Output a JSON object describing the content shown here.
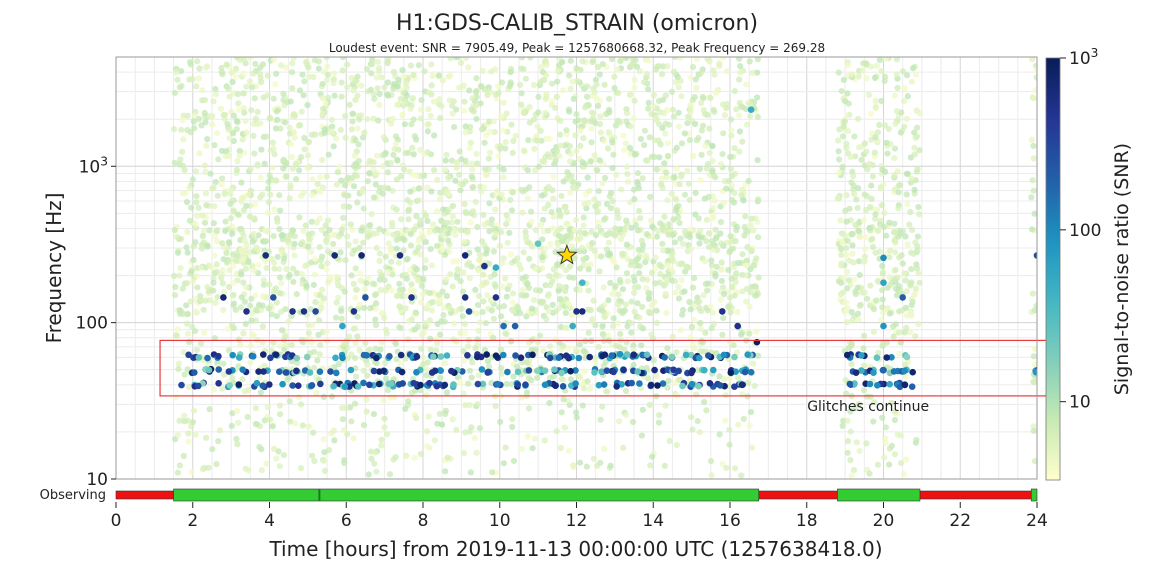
{
  "chart_data": {
    "type": "scatter",
    "title": "H1:GDS-CALIB_STRAIN (omicron)",
    "subtitle": "Loudest event: SNR = 7905.49, Peak = 1257680668.32, Peak Frequency = 269.28",
    "xlabel": "Time [hours] from 2019-11-13 00:00:00 UTC (1257638418.0)",
    "ylabel": "Frequency [Hz]",
    "xlim": [
      0,
      24
    ],
    "ylim": [
      10,
      5000
    ],
    "yscale": "log",
    "x_ticks": [
      "0",
      "2",
      "4",
      "6",
      "8",
      "10",
      "12",
      "14",
      "16",
      "18",
      "20",
      "22",
      "24"
    ],
    "y_ticks": [
      {
        "value": 10,
        "label": "10"
      },
      {
        "value": 100,
        "label": "100"
      },
      {
        "value": 1000,
        "label": "10",
        "sup": "3"
      }
    ],
    "grid": true,
    "colorbar": {
      "label": "Signal-to-noise ratio (SNR)",
      "scale": "log",
      "range": [
        3.5,
        1000
      ],
      "colormap": [
        "#ffffcc",
        "#c7e9b4",
        "#7fcdbb",
        "#41b6c4",
        "#1d91c0",
        "#225ea8",
        "#253494",
        "#081d58"
      ],
      "ticks": [
        {
          "value": 10,
          "label": "10"
        },
        {
          "value": 100,
          "label": "100"
        },
        {
          "value": 1000,
          "label": "10",
          "sup": "3"
        }
      ]
    },
    "annotation": {
      "text": "Glitches continue",
      "box_x": [
        1.2,
        24
      ],
      "box_freq": [
        34,
        77
      ],
      "box_color": "#e8383d"
    },
    "loudest_event": {
      "time_hours": 11.75,
      "frequency": 269.28,
      "snr": 7905.49,
      "marker": "star",
      "color": "#ffd700"
    },
    "background_segments": [
      {
        "start": 1.5,
        "end": 16.75
      },
      {
        "start": 18.8,
        "end": 20.95
      },
      {
        "start": 23.85,
        "end": 24
      }
    ],
    "events": [
      {
        "t": 3.9,
        "f": 269,
        "snr": 600
      },
      {
        "t": 5.7,
        "f": 269,
        "snr": 650
      },
      {
        "t": 6.4,
        "f": 269,
        "snr": 700
      },
      {
        "t": 7.4,
        "f": 269,
        "snr": 600
      },
      {
        "t": 9.1,
        "f": 269,
        "snr": 700
      },
      {
        "t": 9.6,
        "f": 230,
        "snr": 500
      },
      {
        "t": 9.9,
        "f": 225,
        "snr": 50
      },
      {
        "t": 2.8,
        "f": 145,
        "snr": 700
      },
      {
        "t": 4.1,
        "f": 145,
        "snr": 250
      },
      {
        "t": 6.5,
        "f": 145,
        "snr": 250
      },
      {
        "t": 7.7,
        "f": 145,
        "snr": 500
      },
      {
        "t": 9.1,
        "f": 145,
        "snr": 600
      },
      {
        "t": 9.9,
        "f": 145,
        "snr": 500
      },
      {
        "t": 3.4,
        "f": 118,
        "snr": 500
      },
      {
        "t": 4.6,
        "f": 118,
        "snr": 500
      },
      {
        "t": 4.9,
        "f": 118,
        "snr": 500
      },
      {
        "t": 5.2,
        "f": 118,
        "snr": 300
      },
      {
        "t": 6.2,
        "f": 118,
        "snr": 500
      },
      {
        "t": 9.2,
        "f": 118,
        "snr": 250
      },
      {
        "t": 12.0,
        "f": 118,
        "snr": 500
      },
      {
        "t": 12.15,
        "f": 118,
        "snr": 600
      },
      {
        "t": 15.8,
        "f": 118,
        "snr": 500
      },
      {
        "t": 10.1,
        "f": 95,
        "snr": 150
      },
      {
        "t": 10.4,
        "f": 95,
        "snr": 200
      },
      {
        "t": 5.9,
        "f": 95,
        "snr": 60
      },
      {
        "t": 11.9,
        "f": 95,
        "snr": 50
      },
      {
        "t": 16.2,
        "f": 95,
        "snr": 500
      },
      {
        "t": 20.5,
        "f": 145,
        "snr": 200
      },
      {
        "t": 20.0,
        "f": 260,
        "snr": 100
      },
      {
        "t": 20.0,
        "f": 180,
        "snr": 60
      },
      {
        "t": 20.0,
        "f": 95,
        "snr": 80
      },
      {
        "t": 24.0,
        "f": 269,
        "snr": 300
      },
      {
        "t": 16.55,
        "f": 2300,
        "snr": 50
      },
      {
        "t": 12.15,
        "f": 180,
        "snr": 40
      },
      {
        "t": 11.0,
        "f": 320,
        "snr": 25
      },
      {
        "t": 16.7,
        "f": 75,
        "snr": 900
      }
    ],
    "segments": {
      "label": "Observing",
      "active_color": "#33cc33",
      "inactive_color": "#ee1111",
      "on": [
        [
          1.5,
          16.75
        ],
        [
          18.8,
          20.95
        ],
        [
          23.85,
          24
        ]
      ],
      "off": [
        [
          0,
          1.5
        ],
        [
          16.75,
          18.8
        ],
        [
          20.95,
          23.85
        ]
      ],
      "marker_hours": [
        5.3
      ]
    }
  }
}
